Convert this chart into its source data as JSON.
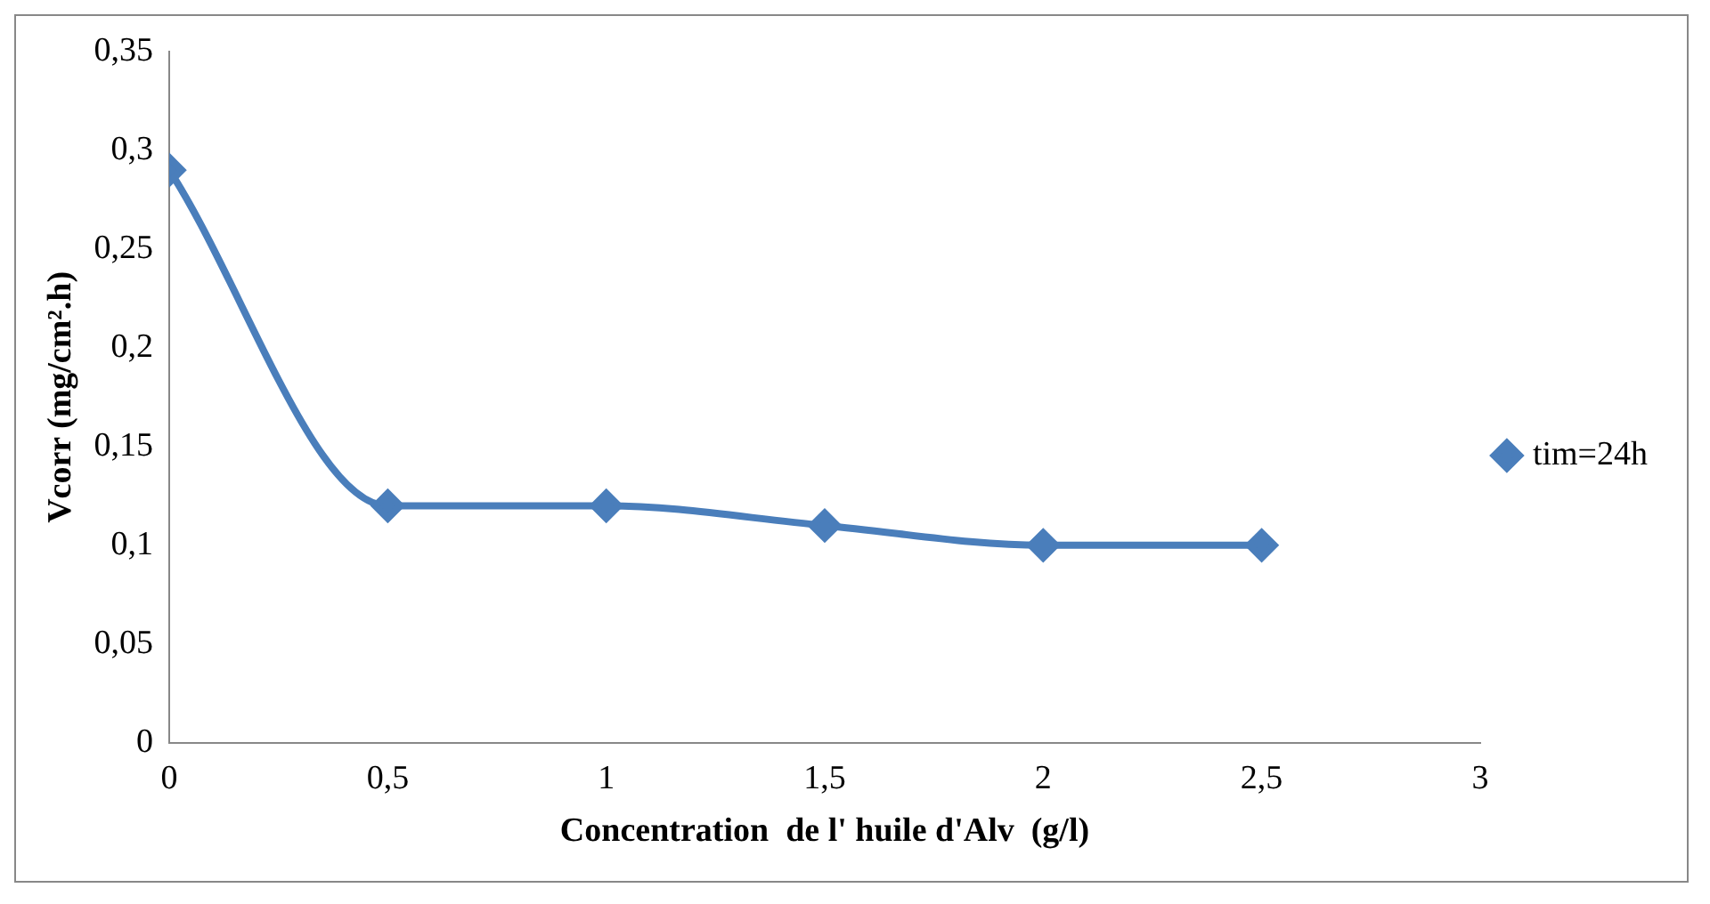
{
  "chart_data": {
    "type": "line",
    "xlabel": "Concentration  de l' huile d'Alv  (g/l)",
    "ylabel": "Vcorr (mg/cm².h)",
    "x": [
      0,
      0.5,
      1,
      1.5,
      2,
      2.5
    ],
    "series": [
      {
        "name": "tim=24h",
        "color": "#4a7ebb",
        "values": [
          0.29,
          0.12,
          0.12,
          0.11,
          0.1,
          0.1
        ]
      }
    ],
    "xlim": [
      0,
      3
    ],
    "xticks": [
      0,
      {
        "value": 0.5,
        "label": "0,5"
      },
      1,
      {
        "value": 1.5,
        "label": "1,5"
      },
      2,
      {
        "value": 2.5,
        "label": "2,5"
      },
      3
    ],
    "ylim": [
      0,
      0.35
    ],
    "yticks": [
      0,
      {
        "value": 0.05,
        "label": "0,05"
      },
      {
        "value": 0.1,
        "label": "0,1"
      },
      {
        "value": 0.15,
        "label": "0,15"
      },
      {
        "value": 0.2,
        "label": "0,2"
      },
      {
        "value": 0.25,
        "label": "0,25"
      },
      {
        "value": 0.3,
        "label": "0,3"
      },
      {
        "value": 0.35,
        "label": "0,35"
      }
    ],
    "grid": false,
    "legend": "right",
    "marker": "diamond",
    "line_style": "solid"
  }
}
